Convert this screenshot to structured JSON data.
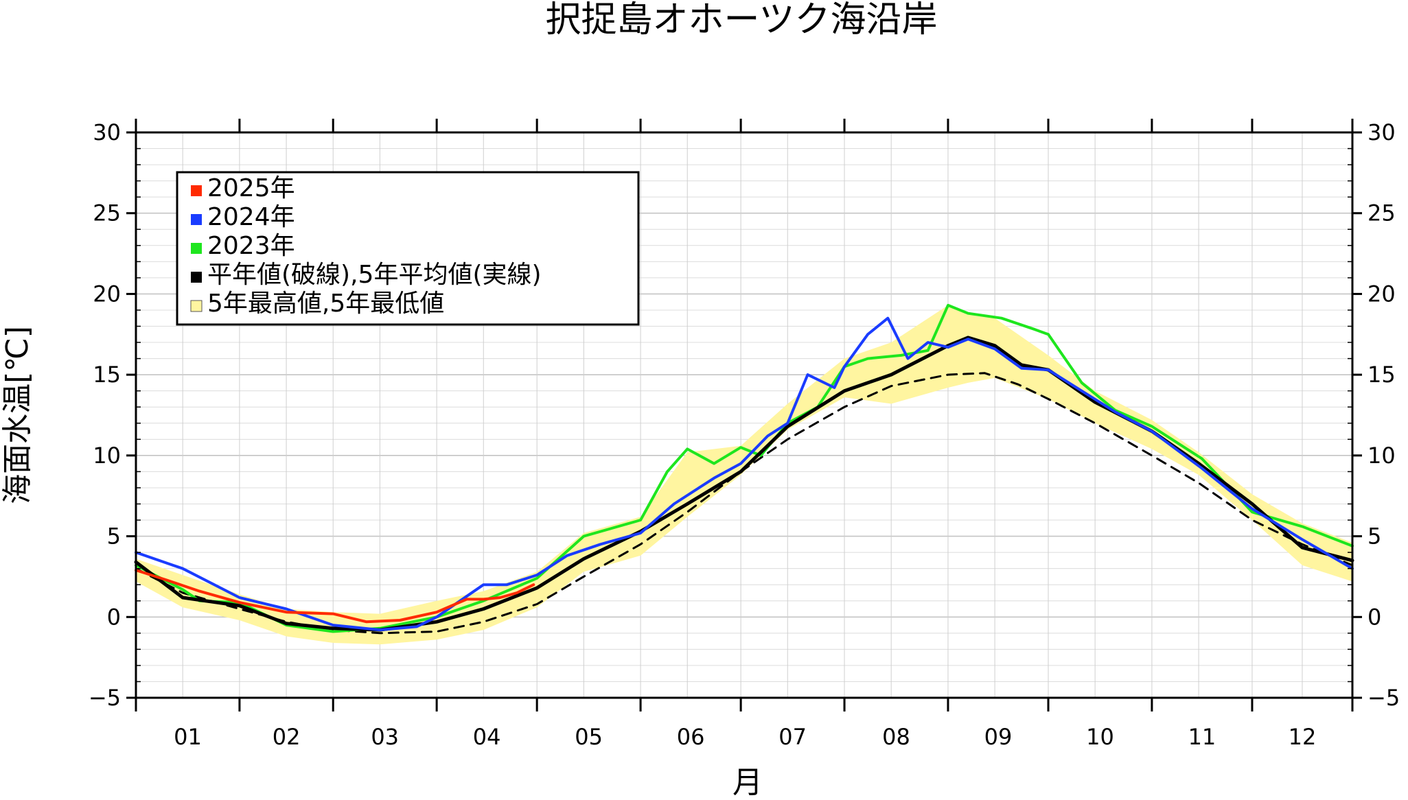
{
  "chart_data": {
    "type": "line",
    "title": "択捉島オホーツク海沿岸",
    "xlabel": "月",
    "ylabel": "海面水温[℃]",
    "x_categories": [
      "01",
      "02",
      "03",
      "04",
      "05",
      "06",
      "07",
      "08",
      "09",
      "10",
      "11",
      "12"
    ],
    "ylim": [
      -5,
      30
    ],
    "y_ticks": [
      "30",
      "25",
      "20",
      "15",
      "10",
      "5",
      "0",
      "−5"
    ],
    "y_tick_values": [
      30,
      25,
      20,
      15,
      10,
      5,
      0,
      -5
    ],
    "grid": true,
    "legend_position": "top-left",
    "legend": [
      {
        "label": "2025年",
        "color": "#ff2a00"
      },
      {
        "label": "2024年",
        "color": "#1a3cff"
      },
      {
        "label": "2023年",
        "color": "#1ee61e"
      },
      {
        "label": "平年値(破線),5年平均値(実線)",
        "color": "#000000"
      },
      {
        "label": "5年最高値,5年最低値",
        "color": "#fff5a0"
      }
    ],
    "x_day_values": [
      1,
      15,
      32,
      46,
      60,
      74,
      91,
      105,
      121,
      135,
      152,
      166,
      182,
      196,
      213,
      227,
      244,
      258,
      274,
      288,
      305,
      319,
      335,
      350,
      365
    ],
    "series": [
      {
        "name": "2025年",
        "color": "#ff2a00",
        "x": [
          1,
          10,
          20,
          32,
          46,
          60,
          70,
          80,
          91,
          100,
          105,
          110,
          115,
          120
        ],
        "y": [
          2.9,
          2.3,
          1.6,
          0.9,
          0.3,
          0.2,
          -0.3,
          -0.2,
          0.3,
          1.1,
          1.1,
          1.2,
          1.5,
          2.0
        ]
      },
      {
        "name": "2024年",
        "color": "#1a3cff",
        "x": [
          1,
          15,
          32,
          46,
          60,
          74,
          85,
          91,
          98,
          105,
          112,
          121,
          130,
          140,
          152,
          162,
          174,
          182,
          190,
          196,
          202,
          210,
          213,
          220,
          226,
          232,
          238,
          244,
          250,
          258,
          266,
          274,
          284,
          294,
          305,
          320,
          335,
          350,
          365
        ],
        "y": [
          4.0,
          3.0,
          1.2,
          0.5,
          -0.5,
          -0.8,
          -0.6,
          0.0,
          1.0,
          2.0,
          2.0,
          2.6,
          3.8,
          4.5,
          5.2,
          7.0,
          8.6,
          9.5,
          11.2,
          12.0,
          15.0,
          14.2,
          15.5,
          17.5,
          18.5,
          16.0,
          17.0,
          16.7,
          17.2,
          16.6,
          15.4,
          15.3,
          14.0,
          12.7,
          11.5,
          9.2,
          6.7,
          4.8,
          3.0
        ]
      },
      {
        "name": "2023年",
        "color": "#1ee61e",
        "x": [
          1,
          15,
          20,
          32,
          46,
          60,
          74,
          91,
          105,
          121,
          135,
          152,
          160,
          166,
          174,
          182,
          188,
          196,
          205,
          213,
          220,
          230,
          238,
          244,
          250,
          260,
          270,
          274,
          284,
          294,
          305,
          320,
          335,
          350,
          365
        ],
        "y": [
          3.2,
          1.7,
          1.0,
          0.9,
          -0.5,
          -0.9,
          -0.7,
          0.0,
          1.0,
          2.4,
          5.0,
          6.0,
          9.0,
          10.4,
          9.5,
          10.5,
          10.0,
          12.0,
          13.0,
          15.5,
          16.0,
          16.2,
          16.5,
          19.3,
          18.8,
          18.5,
          17.8,
          17.5,
          14.5,
          12.8,
          11.8,
          9.8,
          6.5,
          5.6,
          4.4
        ]
      },
      {
        "name": "5年平均値",
        "color": "#000000",
        "dash": false,
        "x": [
          1,
          15,
          32,
          46,
          60,
          74,
          91,
          105,
          121,
          135,
          152,
          166,
          182,
          196,
          213,
          227,
          244,
          250,
          258,
          266,
          274,
          288,
          305,
          319,
          335,
          350,
          365
        ],
        "y": [
          3.4,
          1.2,
          0.7,
          -0.4,
          -0.7,
          -0.8,
          -0.3,
          0.5,
          1.8,
          3.6,
          5.3,
          7.0,
          9.0,
          11.8,
          14.0,
          15.0,
          16.8,
          17.3,
          16.8,
          15.6,
          15.3,
          13.3,
          11.5,
          9.5,
          7.0,
          4.3,
          3.5
        ]
      },
      {
        "name": "平年値",
        "color": "#000000",
        "dash": true,
        "x": [
          1,
          15,
          32,
          46,
          60,
          74,
          91,
          105,
          121,
          135,
          152,
          166,
          182,
          196,
          213,
          227,
          244,
          255,
          265,
          274,
          288,
          305,
          319,
          335,
          350,
          365
        ],
        "y": [
          3.0,
          1.5,
          0.5,
          -0.3,
          -0.8,
          -1.0,
          -0.9,
          -0.3,
          0.8,
          2.5,
          4.5,
          6.5,
          9.0,
          11.0,
          13.0,
          14.3,
          15.0,
          15.1,
          14.4,
          13.5,
          12.0,
          10.0,
          8.3,
          6.0,
          4.5,
          3.2
        ]
      }
    ],
    "band": {
      "name": "5年最高値,5年最低値",
      "color": "#fff5a0",
      "x": [
        1,
        15,
        32,
        46,
        60,
        74,
        91,
        105,
        121,
        135,
        152,
        166,
        182,
        196,
        213,
        227,
        244,
        250,
        258,
        274,
        288,
        305,
        319,
        335,
        350,
        365
      ],
      "upper": [
        3.6,
        2.6,
        1.4,
        0.5,
        0.3,
        0.2,
        1.0,
        1.6,
        2.8,
        5.2,
        6.2,
        10.2,
        10.6,
        13.2,
        16.0,
        17.0,
        19.3,
        18.8,
        18.5,
        16.2,
        14.0,
        12.2,
        10.2,
        7.6,
        5.8,
        4.6
      ],
      "lower": [
        2.2,
        0.6,
        -0.2,
        -1.2,
        -1.6,
        -1.7,
        -1.4,
        -0.8,
        0.6,
        2.8,
        3.8,
        6.2,
        8.8,
        11.6,
        13.6,
        13.2,
        14.2,
        14.5,
        14.8,
        13.5,
        12.0,
        10.4,
        8.8,
        6.0,
        3.2,
        2.2
      ]
    }
  }
}
